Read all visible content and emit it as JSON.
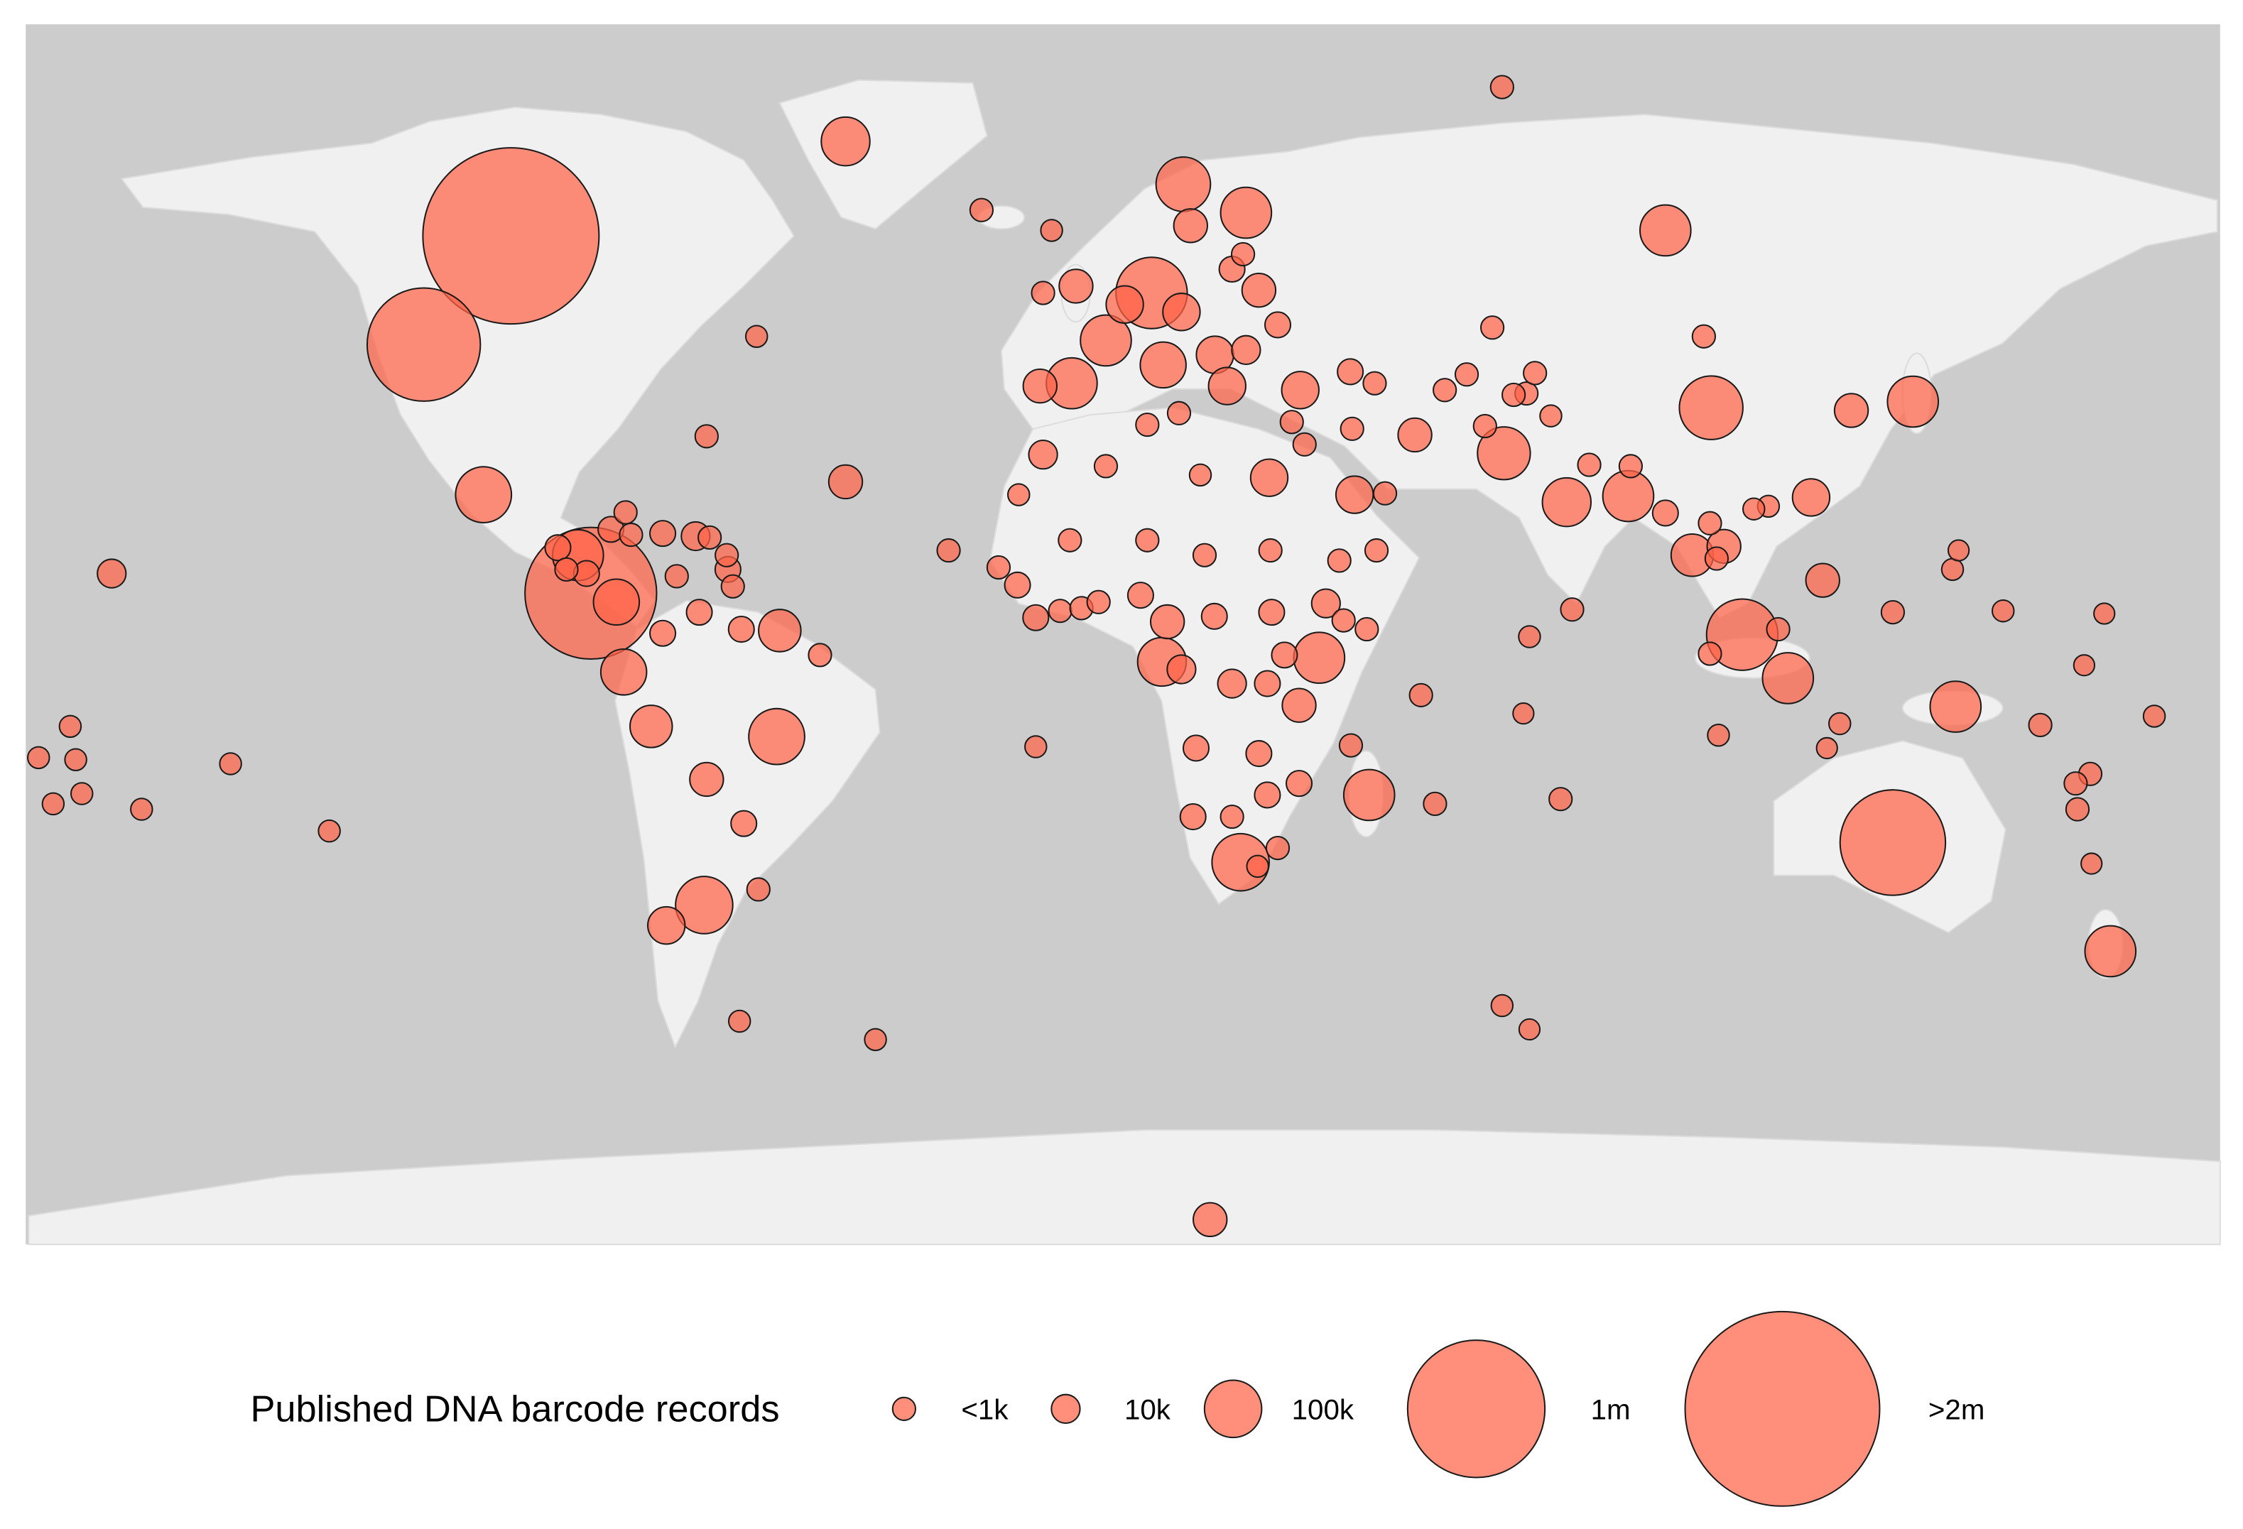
{
  "chart_data": {
    "type": "bubble-map",
    "color": "#ff6347",
    "alpha": 0.72,
    "size_legend": {
      "title": "Published DNA barcode records",
      "values": [
        {
          "value": 1000,
          "label": "<1k"
        },
        {
          "value": 10000,
          "label": "10k"
        },
        {
          "value": 100000,
          "label": "100k"
        },
        {
          "value": 1000000,
          "label": "1m"
        },
        {
          "value": 2000000,
          "label": ">2m"
        }
      ]
    },
    "points": [
      {
        "lon": -100.4,
        "lat": 59.6,
        "records": 1600000
      },
      {
        "lon": -114.7,
        "lat": 43.6,
        "records": 500000
      },
      {
        "lon": -87.3,
        "lat": 7.0,
        "records": 850000
      },
      {
        "lon": 126.3,
        "lat": -29.7,
        "records": 400000
      },
      {
        "lon": 101.6,
        "lat": 0.9,
        "records": 150000
      },
      {
        "lon": 4.7,
        "lat": 51.2,
        "records": 150000
      },
      {
        "lon": 96.5,
        "lat": 34.3,
        "records": 120000
      },
      {
        "lon": -104.9,
        "lat": 21.5,
        "records": 90000
      },
      {
        "lon": -56.8,
        "lat": -14.1,
        "records": 90000
      },
      {
        "lon": -68.7,
        "lat": -38.9,
        "records": 100000
      },
      {
        "lon": 19.3,
        "lat": -32.6,
        "records": 100000
      },
      {
        "lon": 9.9,
        "lat": 67.2,
        "records": 80000
      },
      {
        "lon": 62.5,
        "lat": 27.6,
        "records": 70000
      },
      {
        "lon": 20.2,
        "lat": 63.0,
        "records": 60000
      },
      {
        "lon": -2.8,
        "lat": 44.2,
        "records": 60000
      },
      {
        "lon": -8.4,
        "lat": 37.9,
        "records": 60000
      },
      {
        "lon": 89.0,
        "lat": 60.4,
        "records": 60000
      },
      {
        "lon": 82.9,
        "lat": 21.3,
        "records": 60000
      },
      {
        "lon": 109.1,
        "lat": -5.5,
        "records": 60000
      },
      {
        "lon": 129.6,
        "lat": 35.2,
        "records": 60000
      },
      {
        "lon": 136.6,
        "lat": -9.7,
        "records": 60000
      },
      {
        "lon": 40.4,
        "lat": -22.7,
        "records": 60000
      },
      {
        "lon": 162.0,
        "lat": -45.7,
        "records": 60000
      },
      {
        "lon": 32.2,
        "lat": -2.5,
        "records": 60000
      },
      {
        "lon": -89.4,
        "lat": 12.6,
        "records": 60000
      },
      {
        "lon": -45.5,
        "lat": 73.5,
        "records": 50000
      },
      {
        "lon": 72.8,
        "lat": 20.4,
        "records": 50000
      },
      {
        "lon": 6.4,
        "lat": -3.1,
        "records": 50000
      },
      {
        "lon": -83.1,
        "lat": 5.7,
        "records": 40000
      },
      {
        "lon": -81.9,
        "lat": -4.6,
        "records": 40000
      },
      {
        "lon": 6.6,
        "lat": 40.6,
        "records": 40000
      },
      {
        "lon": -56.3,
        "lat": 1.5,
        "records": 30000
      },
      {
        "lon": -77.4,
        "lat": -12.6,
        "records": 30000
      },
      {
        "lon": 93.4,
        "lat": 12.6,
        "records": 30000
      },
      {
        "lon": -74.9,
        "lat": -41.9,
        "records": 20000
      },
      {
        "lon": 0.3,
        "lat": 49.5,
        "records": 20000
      },
      {
        "lon": 9.6,
        "lat": 48.4,
        "records": 20000
      },
      {
        "lon": 15.1,
        "lat": 42.1,
        "records": 20000
      },
      {
        "lon": 17.1,
        "lat": 37.5,
        "records": 20000
      },
      {
        "lon": 29.1,
        "lat": 36.9,
        "records": 20000
      },
      {
        "lon": 24.0,
        "lat": 24.0,
        "records": 20000
      },
      {
        "lon": 38.0,
        "lat": 21.5,
        "records": 20000
      },
      {
        "lon": 112.9,
        "lat": 21.1,
        "records": 20000
      },
      {
        "lon": -68.3,
        "lat": -20.4,
        "records": 15000
      },
      {
        "lon": -45.5,
        "lat": 23.4,
        "records": 15000
      },
      {
        "lon": 11.1,
        "lat": 61.1,
        "records": 15000
      },
      {
        "lon": -7.7,
        "lat": 52.2,
        "records": 15000
      },
      {
        "lon": 22.3,
        "lat": 51.6,
        "records": 15000
      },
      {
        "lon": -13.6,
        "lat": 37.5,
        "records": 15000
      },
      {
        "lon": 47.9,
        "lat": 30.3,
        "records": 15000
      },
      {
        "lon": 98.6,
        "lat": 13.9,
        "records": 15000
      },
      {
        "lon": 114.8,
        "lat": 8.9,
        "records": 15000
      },
      {
        "lon": 119.5,
        "lat": 33.9,
        "records": 15000
      },
      {
        "lon": 7.3,
        "lat": 2.8,
        "records": 15000
      },
      {
        "lon": 28.9,
        "lat": -9.5,
        "records": 15000
      },
      {
        "lon": 14.3,
        "lat": -85.2,
        "records": 15000
      },
      {
        "lon": -165.9,
        "lat": 9.9,
        "records": 10000
      },
      {
        "lon": -70.1,
        "lat": 15.4,
        "records": 10000
      },
      {
        "lon": 20.2,
        "lat": 42.8,
        "records": 10000
      },
      {
        "lon": -13.1,
        "lat": 27.4,
        "records": 10000
      },
      {
        "lon": 33.3,
        "lat": 5.5,
        "records": 10000
      },
      {
        "lon": 9.6,
        "lat": -4.2,
        "records": 10000
      },
      {
        "lon": 17.9,
        "lat": -6.3,
        "records": 10000
      },
      {
        "lon": -92.7,
        "lat": 13.7,
        "records": 3000
      },
      {
        "lon": -88.0,
        "lat": 9.9,
        "records": 3000
      },
      {
        "lon": -84.0,
        "lat": 16.4,
        "records": 3000
      },
      {
        "lon": -75.5,
        "lat": 15.8,
        "records": 3000
      },
      {
        "lon": -64.8,
        "lat": 10.5,
        "records": 3000
      },
      {
        "lon": -69.5,
        "lat": 4.2,
        "records": 3000
      },
      {
        "lon": -75.5,
        "lat": 1.1,
        "records": 3000
      },
      {
        "lon": -62.6,
        "lat": 1.7,
        "records": 3000
      },
      {
        "lon": -62.2,
        "lat": -26.9,
        "records": 3000
      },
      {
        "lon": 17.9,
        "lat": 54.7,
        "records": 3000
      },
      {
        "lon": 25.4,
        "lat": 46.5,
        "records": 3000
      },
      {
        "lon": 37.3,
        "lat": 39.6,
        "records": 3000
      },
      {
        "lon": 89.0,
        "lat": 18.8,
        "records": 3000
      },
      {
        "lon": -17.3,
        "lat": 8.2,
        "records": 3000
      },
      {
        "lon": -14.3,
        "lat": 3.4,
        "records": 3000
      },
      {
        "lon": 2.9,
        "lat": 6.7,
        "records": 3000
      },
      {
        "lon": 15.0,
        "lat": 3.6,
        "records": 3000
      },
      {
        "lon": 24.4,
        "lat": 4.2,
        "records": 3000
      },
      {
        "lon": 26.5,
        "lat": -2.1,
        "records": 3000
      },
      {
        "lon": 23.7,
        "lat": -6.3,
        "records": 3000
      },
      {
        "lon": 12.0,
        "lat": -15.8,
        "records": 3000
      },
      {
        "lon": 22.3,
        "lat": -16.6,
        "records": 3000
      },
      {
        "lon": 28.9,
        "lat": -21.0,
        "records": 3000
      },
      {
        "lon": 23.7,
        "lat": -22.7,
        "records": 3000
      },
      {
        "lon": 11.5,
        "lat": -25.9,
        "records": 3000
      },
      {
        "lon": -91.3,
        "lat": 10.5,
        "records": 1000
      },
      {
        "lon": -81.6,
        "lat": 18.9,
        "records": 1000
      },
      {
        "lon": -80.7,
        "lat": 15.6,
        "records": 1000
      },
      {
        "lon": -67.8,
        "lat": 15.2,
        "records": 1000
      },
      {
        "lon": -65.0,
        "lat": 12.6,
        "records": 1000
      },
      {
        "lon": -64.0,
        "lat": 8.0,
        "records": 1000
      },
      {
        "lon": -73.2,
        "lat": 9.5,
        "records": 1000
      },
      {
        "lon": -49.7,
        "lat": -2.1,
        "records": 1000
      },
      {
        "lon": -59.8,
        "lat": -36.6,
        "records": 1000
      },
      {
        "lon": -23.2,
        "lat": 63.4,
        "records": 1000
      },
      {
        "lon": -68.3,
        "lat": 30.1,
        "records": 1000
      },
      {
        "lon": -28.6,
        "lat": 13.3,
        "records": 1000
      },
      {
        "lon": 62.2,
        "lat": 81.5,
        "records": 1000
      },
      {
        "lon": -13.1,
        "lat": 51.2,
        "records": 1000
      },
      {
        "lon": 19.7,
        "lat": 56.9,
        "records": 1000
      },
      {
        "lon": 41.3,
        "lat": 37.9,
        "records": 1000
      },
      {
        "lon": 4.0,
        "lat": 31.8,
        "records": 1000
      },
      {
        "lon": 9.2,
        "lat": 33.5,
        "records": 1000
      },
      {
        "lon": 27.7,
        "lat": 32.2,
        "records": 1000
      },
      {
        "lon": 29.8,
        "lat": 28.9,
        "records": 1000
      },
      {
        "lon": 37.6,
        "lat": 31.2,
        "records": 1000
      },
      {
        "lon": -2.8,
        "lat": 25.7,
        "records": 1000
      },
      {
        "lon": 52.8,
        "lat": 36.9,
        "records": 1000
      },
      {
        "lon": 56.4,
        "lat": 39.2,
        "records": 1000
      },
      {
        "lon": 60.6,
        "lat": 46.1,
        "records": 1000
      },
      {
        "lon": 59.4,
        "lat": 31.6,
        "records": 1000
      },
      {
        "lon": 66.2,
        "lat": 36.4,
        "records": 1000
      },
      {
        "lon": 67.6,
        "lat": 39.4,
        "records": 1000
      },
      {
        "lon": 64.1,
        "lat": 36.2,
        "records": 1000
      },
      {
        "lon": 95.3,
        "lat": 44.8,
        "records": 1000
      },
      {
        "lon": 76.5,
        "lat": 25.9,
        "records": 1000
      },
      {
        "lon": 83.3,
        "lat": 25.7,
        "records": 1000
      },
      {
        "lon": 96.3,
        "lat": 17.3,
        "records": 1000
      },
      {
        "lon": 97.4,
        "lat": 12.1,
        "records": 1000
      },
      {
        "lon": 73.7,
        "lat": 4.6,
        "records": 1000
      },
      {
        "lon": 107.5,
        "lat": 1.7,
        "records": 1000
      },
      {
        "lon": 96.3,
        "lat": -1.9,
        "records": 1000
      },
      {
        "lon": 126.3,
        "lat": 4.2,
        "records": 1000
      },
      {
        "lon": 71.8,
        "lat": -23.3,
        "records": 1000
      },
      {
        "lon": 51.2,
        "lat": -24.0,
        "records": 1000
      },
      {
        "lon": 48.9,
        "lat": -8.0,
        "records": 1000
      },
      {
        "lon": 37.4,
        "lat": -15.4,
        "records": 1000
      },
      {
        "lon": 150.5,
        "lat": -12.4,
        "records": 1000
      },
      {
        "lon": 158.7,
        "lat": -19.6,
        "records": 1000
      },
      {
        "lon": 156.3,
        "lat": -21.0,
        "records": 1000
      },
      {
        "lon": 156.6,
        "lat": -24.8,
        "records": 1000
      },
      {
        "lon": -20.4,
        "lat": 10.8,
        "records": 1000
      },
      {
        "lon": -10.3,
        "lat": 4.4,
        "records": 1000
      },
      {
        "lon": -6.8,
        "lat": 4.8,
        "records": 1000
      },
      {
        "lon": -4.0,
        "lat": 5.7,
        "records": 1000
      },
      {
        "lon": -8.7,
        "lat": 14.8,
        "records": 1000
      },
      {
        "lon": 4.0,
        "lat": 14.8,
        "records": 1000
      },
      {
        "lon": 13.4,
        "lat": 12.6,
        "records": 1000
      },
      {
        "lon": 24.2,
        "lat": 13.3,
        "records": 1000
      },
      {
        "lon": 35.5,
        "lat": 11.8,
        "records": 1000
      },
      {
        "lon": 41.6,
        "lat": 13.3,
        "records": 1000
      },
      {
        "lon": 40.0,
        "lat": 1.7,
        "records": 1000
      },
      {
        "lon": 17.9,
        "lat": -25.9,
        "records": 1000
      },
      {
        "lon": 25.4,
        "lat": -30.5,
        "records": 1000
      },
      {
        "lon": 36.2,
        "lat": 3.0,
        "records": 1000
      },
      {
        "lon": 43.0,
        "lat": 21.7,
        "records": 1000
      },
      {
        "lon": -62.9,
        "lat": -56.0,
        "records": 500
      },
      {
        "lon": -40.6,
        "lat": -58.7,
        "records": 500
      },
      {
        "lon": -14.3,
        "lat": -15.6,
        "records": 500
      },
      {
        "lon": -130.2,
        "lat": -28.0,
        "records": 500
      },
      {
        "lon": -146.4,
        "lat": -18.1,
        "records": 500
      },
      {
        "lon": -161.0,
        "lat": -24.8,
        "records": 500
      },
      {
        "lon": -177.9,
        "lat": -17.2,
        "records": 500
      },
      {
        "lon": -172.7,
        "lat": -12.6,
        "records": 500
      },
      {
        "lon": -170.8,
        "lat": -22.5,
        "records": 500
      },
      {
        "lon": -175.5,
        "lat": -24.0,
        "records": 500
      },
      {
        "lon": -171.8,
        "lat": -17.5,
        "records": 500
      },
      {
        "lon": -60.1,
        "lat": 44.8,
        "records": 500
      },
      {
        "lon": -11.7,
        "lat": 60.4,
        "records": 500
      },
      {
        "lon": 12.7,
        "lat": 24.4,
        "records": 500
      },
      {
        "lon": 70.2,
        "lat": 33.1,
        "records": 500
      },
      {
        "lon": 66.7,
        "lat": 0.6,
        "records": 500
      },
      {
        "lon": 105.9,
        "lat": 19.8,
        "records": 500
      },
      {
        "lon": 136.1,
        "lat": 10.5,
        "records": 500
      },
      {
        "lon": 144.4,
        "lat": 4.4,
        "records": 500
      },
      {
        "lon": 117.6,
        "lat": -12.2,
        "records": 500
      },
      {
        "lon": 97.7,
        "lat": -13.9,
        "records": 500
      },
      {
        "lon": 169.2,
        "lat": -11.1,
        "records": 500
      },
      {
        "lon": 62.2,
        "lat": -53.7,
        "records": 500
      },
      {
        "lon": -17.1,
        "lat": 21.5,
        "records": 500
      },
      {
        "lon": 22.1,
        "lat": -33.2,
        "records": 500
      },
      {
        "lon": 103.5,
        "lat": 19.4,
        "records": 500
      },
      {
        "lon": 137.1,
        "lat": 13.3,
        "records": 300
      },
      {
        "lon": 115.5,
        "lat": -15.8,
        "records": 300
      },
      {
        "lon": 65.7,
        "lat": -10.7,
        "records": 300
      },
      {
        "lon": 157.7,
        "lat": -3.6,
        "records": 300
      },
      {
        "lon": 161.0,
        "lat": 4.0,
        "records": 300
      },
      {
        "lon": 158.9,
        "lat": -32.8,
        "records": 300
      },
      {
        "lon": 66.7,
        "lat": -57.2,
        "records": 300
      }
    ]
  }
}
